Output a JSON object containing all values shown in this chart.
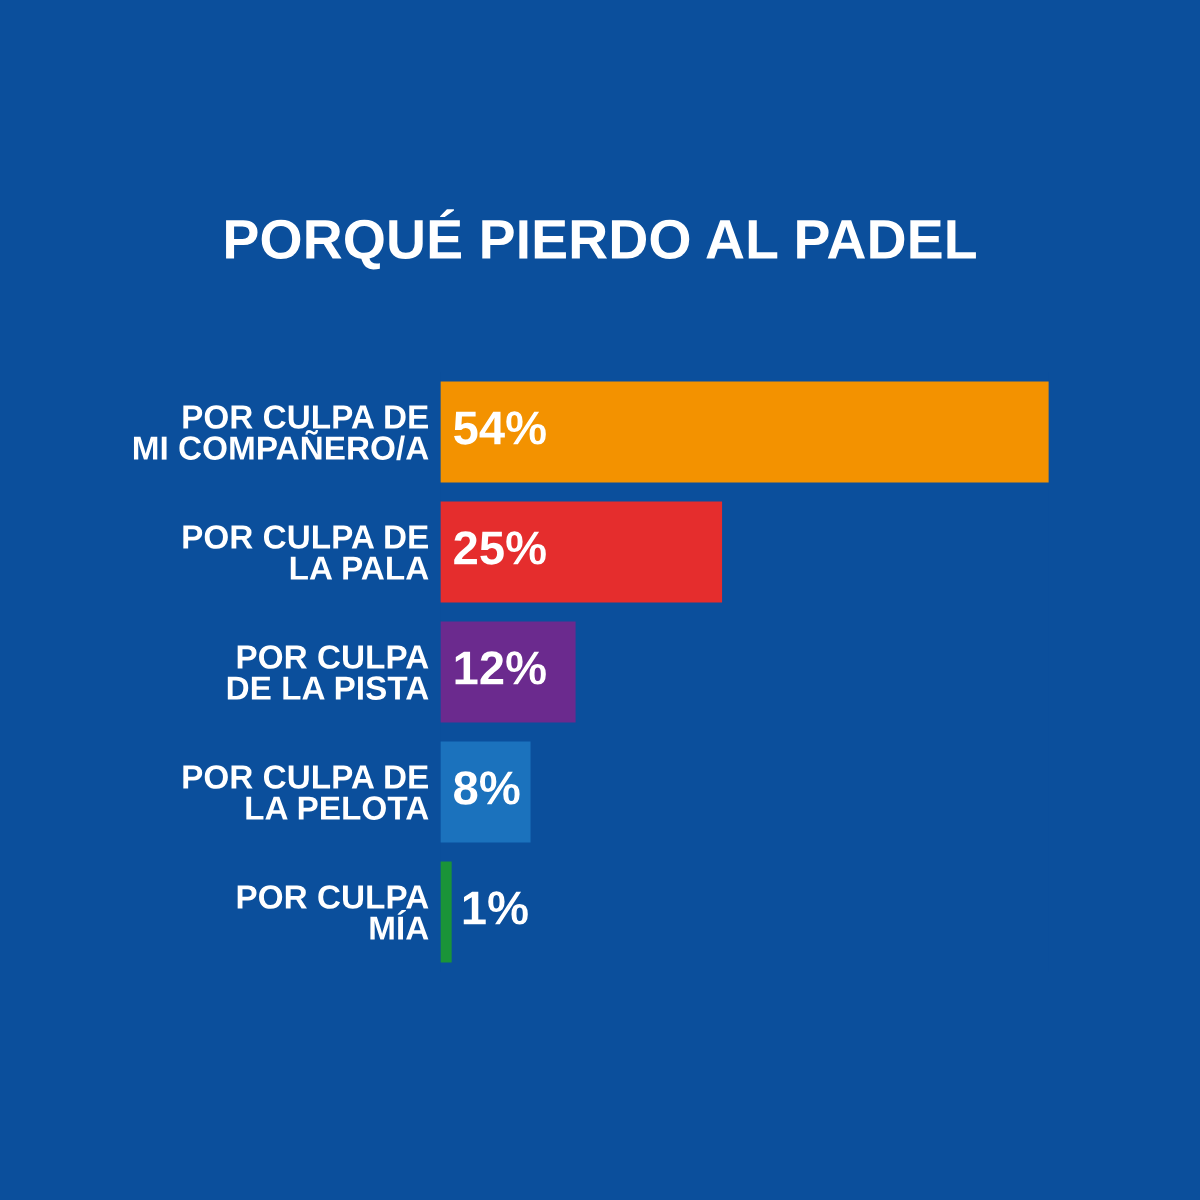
{
  "chart_data": {
    "type": "bar",
    "orientation": "horizontal",
    "title": "PORQUÉ PIERDO AL PADEL",
    "categories": [
      "POR CULPA DE\nMI COMPAÑERO/A",
      "POR CULPA DE\nLA PALA",
      "POR CULPA\nDE LA PISTA",
      "POR CULPA DE\nLA PELOTA",
      "POR CULPA\nMÍA"
    ],
    "values": [
      54,
      25,
      12,
      8,
      1
    ],
    "value_labels": [
      "54%",
      "25%",
      "12%",
      "8%",
      "1%"
    ],
    "colors": [
      "#f39200",
      "#e52d2d",
      "#6b2a8e",
      "#1b72bd",
      "#1a9438"
    ],
    "tick_labels": "y",
    "grid": false,
    "legend": false
  }
}
